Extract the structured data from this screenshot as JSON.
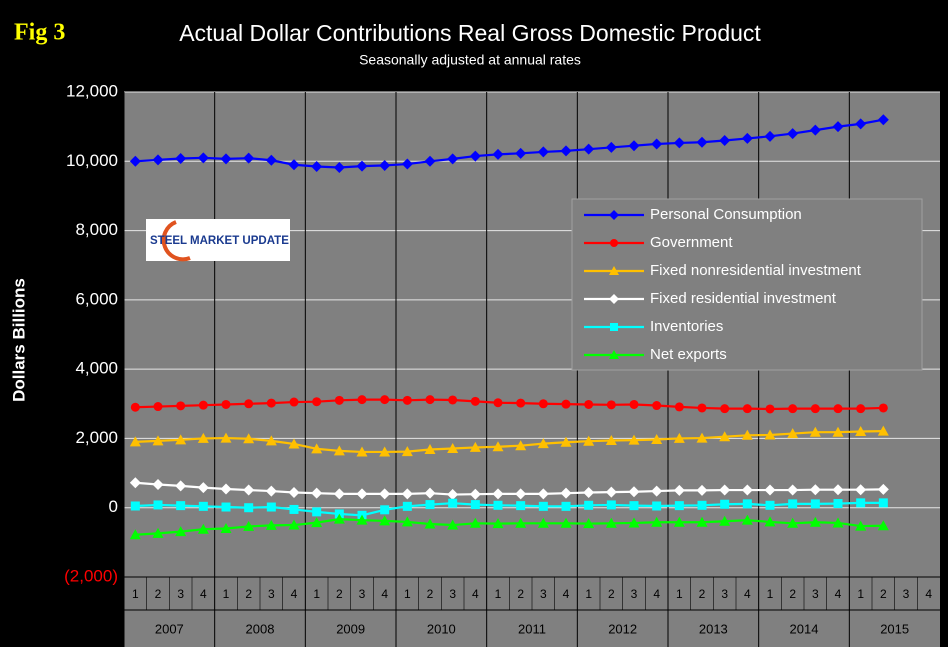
{
  "chart_data": {
    "type": "line",
    "figure_label": "Fig 3",
    "title": "Actual Dollar Contributions Real Gross Domestic Product",
    "subtitle": "Seasonally adjusted at annual rates",
    "y_label": "Dollars Billions",
    "logo": "STEEL MARKET UPDATE",
    "categories": [
      "1",
      "2",
      "3",
      "4",
      "1",
      "2",
      "3",
      "4",
      "1",
      "2",
      "3",
      "4",
      "1",
      "2",
      "3",
      "4",
      "1",
      "2",
      "3",
      "4",
      "1",
      "2",
      "3",
      "4",
      "1",
      "2",
      "3",
      "4",
      "1",
      "2",
      "3",
      "4",
      "1",
      "2",
      "3",
      "4"
    ],
    "years": [
      "2007",
      "2008",
      "2009",
      "2010",
      "2011",
      "2012",
      "2013",
      "2014",
      "2015"
    ],
    "ylim": [
      -2000,
      12000
    ],
    "yticks": [
      {
        "value": -2000,
        "label": "(2,000)"
      },
      0,
      {
        "value": 2000,
        "label": "2,000"
      },
      {
        "value": 4000,
        "label": "4,000"
      },
      {
        "value": 6000,
        "label": "6,000"
      },
      {
        "value": 8000,
        "label": "8,000"
      },
      {
        "value": 10000,
        "label": "10,000"
      },
      {
        "value": 12000,
        "label": "12,000"
      }
    ],
    "grid": true,
    "legend": "upper right",
    "series": [
      {
        "name": "Personal Consumption",
        "color": "#0000ff",
        "marker": "diamond",
        "values": [
          10000,
          10040,
          10080,
          10100,
          10070,
          10090,
          10030,
          9900,
          9850,
          9820,
          9860,
          9880,
          9920,
          10000,
          10070,
          10150,
          10200,
          10230,
          10270,
          10300,
          10350,
          10400,
          10450,
          10500,
          10530,
          10550,
          10600,
          10660,
          10720,
          10800,
          10900,
          11000,
          11080,
          11200,
          null,
          null
        ]
      },
      {
        "name": "Government",
        "color": "#ff0000",
        "marker": "circle",
        "values": [
          2900,
          2920,
          2940,
          2960,
          2980,
          3000,
          3020,
          3050,
          3060,
          3100,
          3120,
          3120,
          3100,
          3120,
          3110,
          3070,
          3030,
          3020,
          3000,
          2990,
          2980,
          2970,
          2980,
          2950,
          2910,
          2880,
          2860,
          2860,
          2850,
          2860,
          2860,
          2860,
          2860,
          2880,
          null,
          null
        ]
      },
      {
        "name": "Fixed nonresidential investment",
        "color": "#ffc000",
        "marker": "triangle",
        "values": [
          1900,
          1930,
          1960,
          2000,
          2010,
          1990,
          1930,
          1840,
          1700,
          1640,
          1610,
          1610,
          1620,
          1680,
          1710,
          1740,
          1760,
          1790,
          1850,
          1890,
          1920,
          1940,
          1950,
          1970,
          2000,
          2010,
          2050,
          2090,
          2100,
          2140,
          2180,
          2180,
          2200,
          2210,
          null,
          null
        ]
      },
      {
        "name": "Fixed residential investment",
        "color": "#ffffff",
        "marker": "diamond",
        "values": [
          720,
          670,
          630,
          580,
          540,
          510,
          480,
          440,
          420,
          400,
          400,
          400,
          400,
          420,
          380,
          390,
          400,
          400,
          400,
          420,
          440,
          450,
          460,
          480,
          500,
          500,
          510,
          510,
          510,
          510,
          520,
          520,
          520,
          530,
          null,
          null
        ]
      },
      {
        "name": "Inventories",
        "color": "#00ffff",
        "marker": "square",
        "values": [
          50,
          80,
          60,
          40,
          20,
          0,
          20,
          -50,
          -120,
          -180,
          -220,
          -60,
          40,
          90,
          130,
          90,
          70,
          60,
          40,
          40,
          70,
          80,
          60,
          50,
          60,
          70,
          100,
          110,
          70,
          110,
          110,
          120,
          140,
          140,
          null,
          null
        ]
      },
      {
        "name": "Net exports",
        "color": "#00ff00",
        "marker": "triangle",
        "values": [
          -780,
          -740,
          -690,
          -620,
          -600,
          -540,
          -510,
          -500,
          -430,
          -330,
          -360,
          -380,
          -410,
          -470,
          -500,
          -450,
          -460,
          -450,
          -450,
          -450,
          -460,
          -450,
          -440,
          -420,
          -420,
          -420,
          -390,
          -360,
          -410,
          -450,
          -420,
          -440,
          -530,
          -520,
          null,
          null
        ]
      }
    ]
  }
}
